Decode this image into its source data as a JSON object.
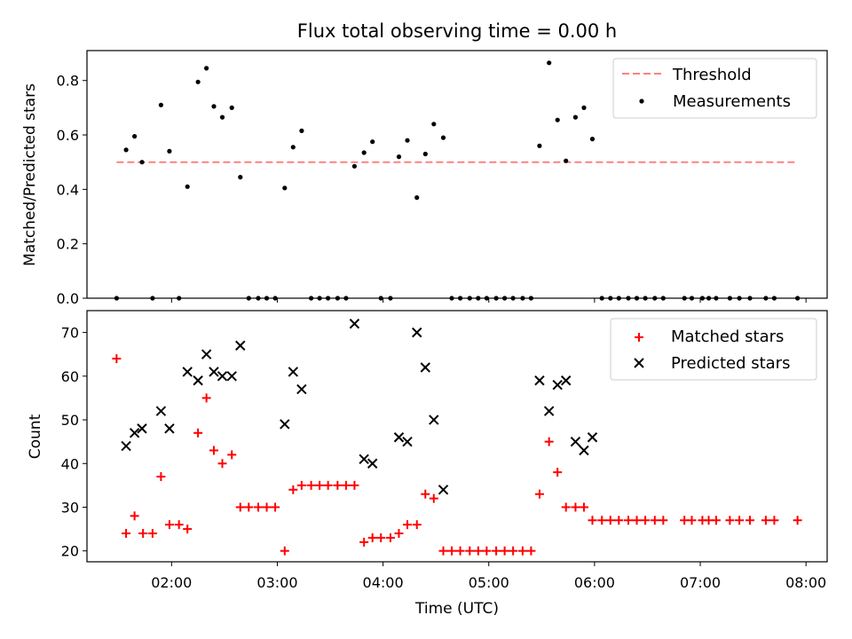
{
  "title": "Flux total observing time = 0.00 h",
  "chart_data": [
    {
      "type": "scatter",
      "ylabel": "Matched/Predicted stars",
      "ylim": [
        0,
        0.91
      ],
      "yticks": [
        0.0,
        0.2,
        0.4,
        0.6,
        0.8
      ],
      "ytick_labels": [
        "0.0",
        "0.2",
        "0.4",
        "0.6",
        "0.8"
      ],
      "xlim_hours": [
        1.2,
        8.2
      ],
      "xticks_hours": [
        2,
        3,
        4,
        5,
        6,
        7,
        8
      ],
      "xtick_labels": [
        "",
        "",
        "",
        "",
        "",
        "",
        ""
      ],
      "legend": {
        "placement": "upper-right",
        "entries": [
          "Threshold",
          "Measurements"
        ]
      },
      "threshold": {
        "label": "Threshold",
        "value": 0.5,
        "x_range_hours": [
          1.48,
          7.92
        ],
        "color": "#ff8080",
        "style": "dashed"
      },
      "measurements": {
        "label": "Measurements",
        "color": "#000000",
        "x_hours": [
          1.48,
          1.57,
          1.65,
          1.72,
          1.82,
          1.9,
          1.98,
          2.07,
          2.15,
          2.25,
          2.33,
          2.4,
          2.48,
          2.57,
          2.65,
          2.73,
          2.82,
          2.9,
          2.98,
          3.07,
          3.15,
          3.23,
          3.32,
          3.4,
          3.48,
          3.57,
          3.65,
          3.73,
          3.82,
          3.9,
          3.98,
          4.07,
          4.15,
          4.23,
          4.32,
          4.4,
          4.48,
          4.57,
          4.65,
          4.73,
          4.82,
          4.9,
          4.98,
          5.07,
          5.15,
          5.23,
          5.32,
          5.4,
          5.48,
          5.57,
          5.65,
          5.73,
          5.82,
          5.9,
          5.98,
          6.07,
          6.15,
          6.23,
          6.32,
          6.4,
          6.48,
          6.57,
          6.65,
          6.85,
          6.92,
          7.02,
          7.08,
          7.15,
          7.28,
          7.37,
          7.47,
          7.62,
          7.7,
          7.92
        ],
        "y": [
          0.0,
          0.545,
          0.595,
          0.5,
          0.0,
          0.71,
          0.54,
          0.0,
          0.41,
          0.795,
          0.845,
          0.705,
          0.665,
          0.7,
          0.445,
          0.0,
          0.0,
          0.0,
          0.0,
          0.405,
          0.555,
          0.615,
          0.0,
          0.0,
          0.0,
          0.0,
          0.0,
          0.485,
          0.535,
          0.575,
          0.0,
          0.0,
          0.52,
          0.58,
          0.37,
          0.53,
          0.64,
          0.59,
          0.0,
          0.0,
          0.0,
          0.0,
          0.0,
          0.0,
          0.0,
          0.0,
          0.0,
          0.0,
          0.56,
          0.865,
          0.655,
          0.505,
          0.665,
          0.7,
          0.585,
          0.0,
          0.0,
          0.0,
          0.0,
          0.0,
          0.0,
          0.0,
          0.0,
          0.0,
          0.0,
          0.0,
          0.0,
          0.0,
          0.0,
          0.0,
          0.0,
          0.0,
          0.0,
          0.0
        ]
      }
    },
    {
      "type": "scatter",
      "xlabel": "Time (UTC)",
      "ylabel": "Count",
      "ylim": [
        17.5,
        75
      ],
      "yticks": [
        20,
        30,
        40,
        50,
        60,
        70
      ],
      "ytick_labels": [
        "20",
        "30",
        "40",
        "50",
        "60",
        "70"
      ],
      "xlim_hours": [
        1.2,
        8.2
      ],
      "xticks_hours": [
        2,
        3,
        4,
        5,
        6,
        7,
        8
      ],
      "xtick_labels": [
        "02:00",
        "03:00",
        "04:00",
        "05:00",
        "06:00",
        "07:00",
        "08:00"
      ],
      "legend": {
        "placement": "upper-right",
        "entries": [
          "Matched stars",
          "Predicted stars"
        ]
      },
      "series": [
        {
          "name": "Matched stars",
          "marker": "plus",
          "color": "#ff0000",
          "x_hours": [
            1.48,
            1.57,
            1.65,
            1.73,
            1.82,
            1.9,
            1.98,
            2.07,
            2.15,
            2.25,
            2.33,
            2.4,
            2.48,
            2.57,
            2.65,
            2.73,
            2.82,
            2.9,
            2.98,
            3.07,
            3.15,
            3.23,
            3.32,
            3.4,
            3.48,
            3.57,
            3.65,
            3.73,
            3.82,
            3.9,
            3.98,
            4.07,
            4.15,
            4.23,
            4.32,
            4.4,
            4.48,
            4.57,
            4.65,
            4.73,
            4.82,
            4.9,
            4.98,
            5.07,
            5.15,
            5.23,
            5.32,
            5.4,
            5.48,
            5.57,
            5.65,
            5.73,
            5.82,
            5.9,
            5.98,
            6.07,
            6.15,
            6.23,
            6.32,
            6.4,
            6.48,
            6.57,
            6.65,
            6.85,
            6.92,
            7.02,
            7.08,
            7.15,
            7.28,
            7.37,
            7.47,
            7.62,
            7.7,
            7.92
          ],
          "values": [
            64,
            24,
            28,
            24,
            24,
            37,
            26,
            26,
            25,
            47,
            55,
            43,
            40,
            42,
            30,
            30,
            30,
            30,
            30,
            20,
            34,
            35,
            35,
            35,
            35,
            35,
            35,
            35,
            22,
            23,
            23,
            23,
            24,
            26,
            26,
            33,
            32,
            20,
            20,
            20,
            20,
            20,
            20,
            20,
            20,
            20,
            20,
            20,
            33,
            45,
            38,
            30,
            30,
            30,
            27,
            27,
            27,
            27,
            27,
            27,
            27,
            27,
            27,
            27,
            27,
            27,
            27,
            27,
            27,
            27,
            27,
            27,
            27,
            27
          ]
        },
        {
          "name": "Predicted stars",
          "marker": "x",
          "color": "#000000",
          "x_hours": [
            1.57,
            1.65,
            1.72,
            1.9,
            1.98,
            2.15,
            2.25,
            2.33,
            2.4,
            2.48,
            2.57,
            2.65,
            3.07,
            3.15,
            3.23,
            3.73,
            3.82,
            3.9,
            4.15,
            4.23,
            4.32,
            4.4,
            4.48,
            4.57,
            5.48,
            5.57,
            5.65,
            5.73,
            5.82,
            5.9,
            5.98
          ],
          "values": [
            44,
            47,
            48,
            52,
            48,
            61,
            59,
            65,
            61,
            60,
            60,
            67,
            49,
            61,
            57,
            72,
            41,
            40,
            46,
            45,
            70,
            62,
            50,
            34,
            59,
            52,
            58,
            59,
            45,
            43,
            46
          ]
        }
      ]
    }
  ]
}
